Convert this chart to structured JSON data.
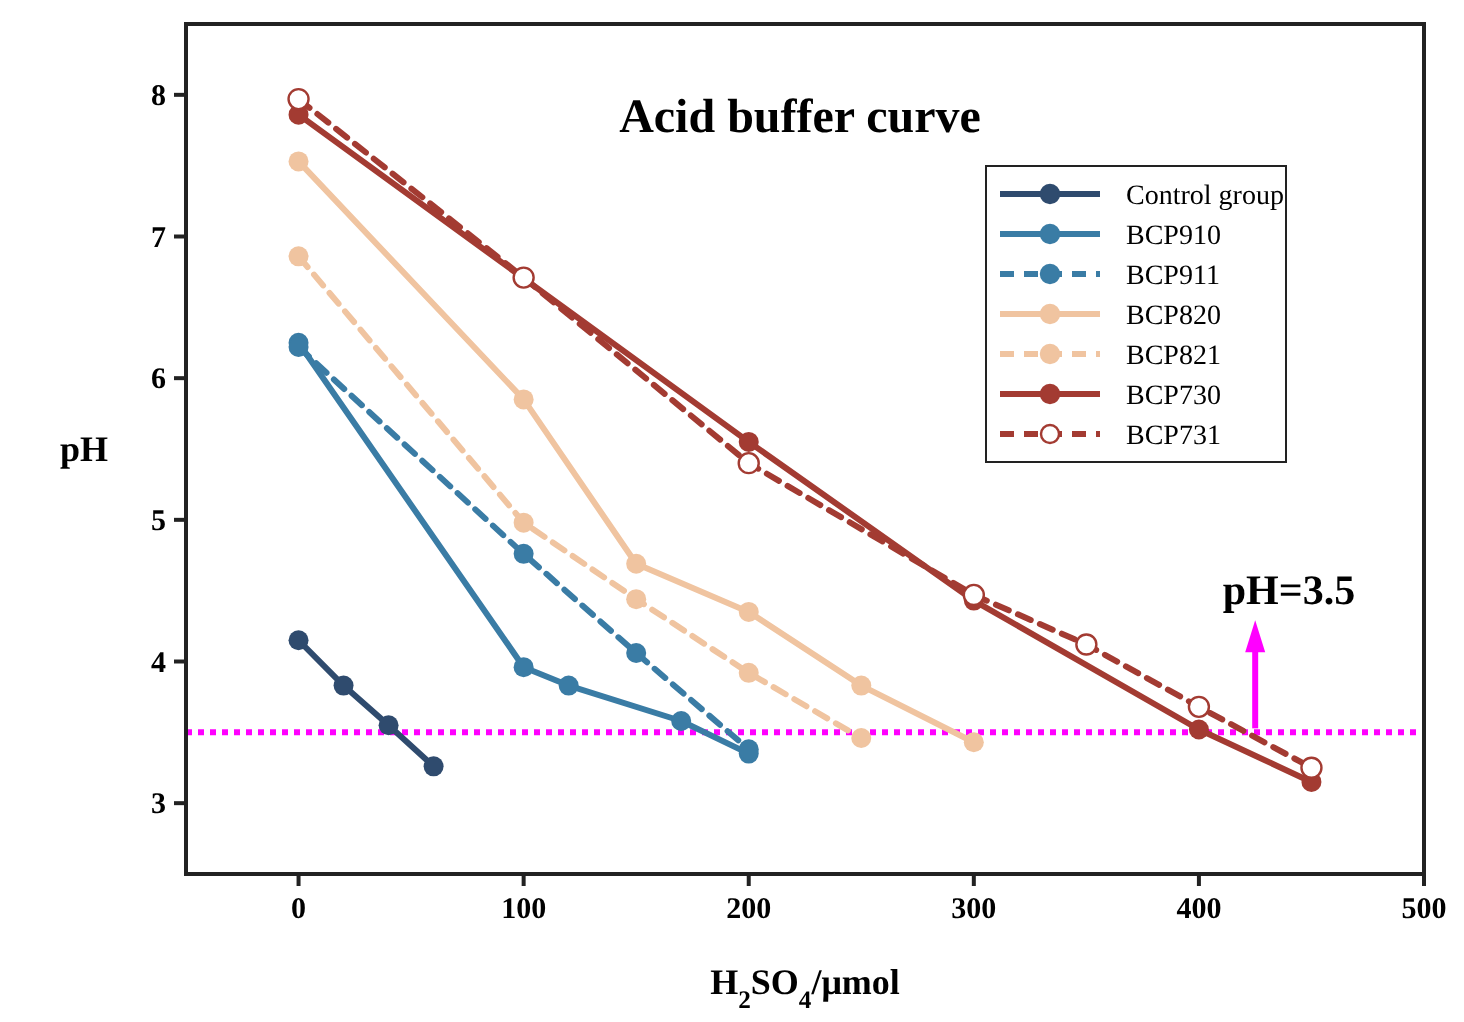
{
  "chart_data": {
    "type": "line",
    "title": "Acid buffer curve",
    "xlabel": "H$_{2}$SO$_{4}$/μmol",
    "ylabel": "pH",
    "xlim": [
      -50,
      500
    ],
    "xticks": [
      0,
      100,
      200,
      300,
      400,
      500
    ],
    "ylim": [
      2.5,
      8.5
    ],
    "yticks": [
      3,
      4,
      5,
      6,
      7,
      8
    ],
    "legend": "top right",
    "grid": false,
    "ref_lines": [
      {
        "axis": "y",
        "value": 3.5,
        "label": "pH=3.5",
        "color": "#ff00ff",
        "line_style": "dotted"
      }
    ],
    "series": [
      {
        "name": "Control group",
        "color": "#2f4b6e",
        "line_style": "solid",
        "marker": "circle",
        "x": [
          0,
          20,
          40,
          60
        ],
        "values": [
          4.15,
          3.83,
          3.55,
          3.26
        ]
      },
      {
        "name": "BCP910",
        "color": "#3a7ca5",
        "line_style": "solid",
        "marker": "circle",
        "x": [
          0,
          100,
          120,
          170,
          200
        ],
        "values": [
          6.25,
          3.96,
          3.83,
          3.58,
          3.35
        ]
      },
      {
        "name": "BCP911",
        "color": "#3a7ca5",
        "line_style": "dashed",
        "marker": "circle",
        "x": [
          0,
          100,
          150,
          200
        ],
        "values": [
          6.22,
          4.76,
          4.06,
          3.38
        ]
      },
      {
        "name": "BCP820",
        "color": "#f0c4a0",
        "line_style": "solid",
        "marker": "circle",
        "x": [
          0,
          100,
          150,
          200,
          250,
          300
        ],
        "values": [
          7.53,
          5.85,
          4.69,
          4.35,
          3.83,
          3.43
        ]
      },
      {
        "name": "BCP821",
        "color": "#f0c4a0",
        "line_style": "dashed",
        "marker": "circle",
        "x": [
          0,
          100,
          150,
          200,
          250
        ],
        "values": [
          6.86,
          4.98,
          4.44,
          3.92,
          3.46
        ]
      },
      {
        "name": "BCP730",
        "color": "#a33b32",
        "line_style": "solid",
        "marker": "circle",
        "x": [
          0,
          200,
          300,
          400,
          450
        ],
        "values": [
          7.86,
          5.55,
          4.43,
          3.52,
          3.15
        ]
      },
      {
        "name": "BCP731",
        "color": "#a33b32",
        "line_style": "dashed",
        "marker": "open-circle",
        "x": [
          0,
          100,
          200,
          300,
          350,
          400,
          450
        ],
        "values": [
          7.97,
          6.71,
          5.4,
          4.47,
          4.12,
          3.68,
          3.25
        ]
      }
    ]
  }
}
